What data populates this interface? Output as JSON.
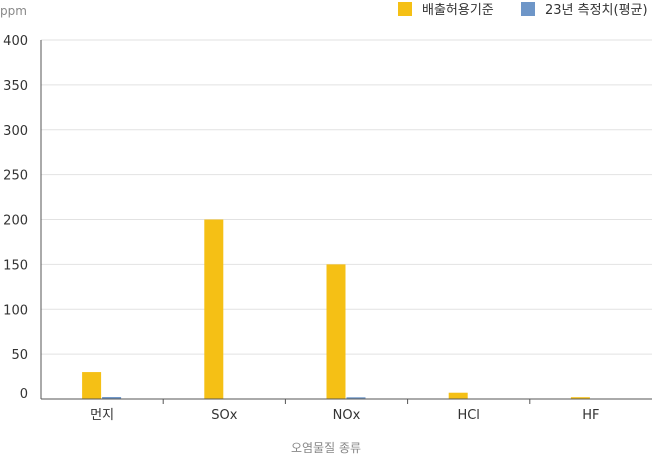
{
  "chart_data": {
    "type": "bar",
    "ylabel": "ppm",
    "xlabel": "오염물질 종류",
    "categories": [
      "먼지",
      "SOx",
      "NOx",
      "HCl",
      "HF"
    ],
    "ylim": [
      0,
      400
    ],
    "yticks": [
      0,
      50,
      100,
      150,
      200,
      250,
      300,
      350,
      400
    ],
    "grid": true,
    "legend_position": "top-right",
    "series": [
      {
        "name": "배출허용기준",
        "color": "#F5C015",
        "values": [
          30,
          200,
          150,
          7,
          2
        ]
      },
      {
        "name": "23년 측정치(평균)",
        "color": "#6E96C8",
        "values": [
          2.2,
          0.3,
          1.9,
          0.5,
          0.4
        ]
      }
    ]
  }
}
